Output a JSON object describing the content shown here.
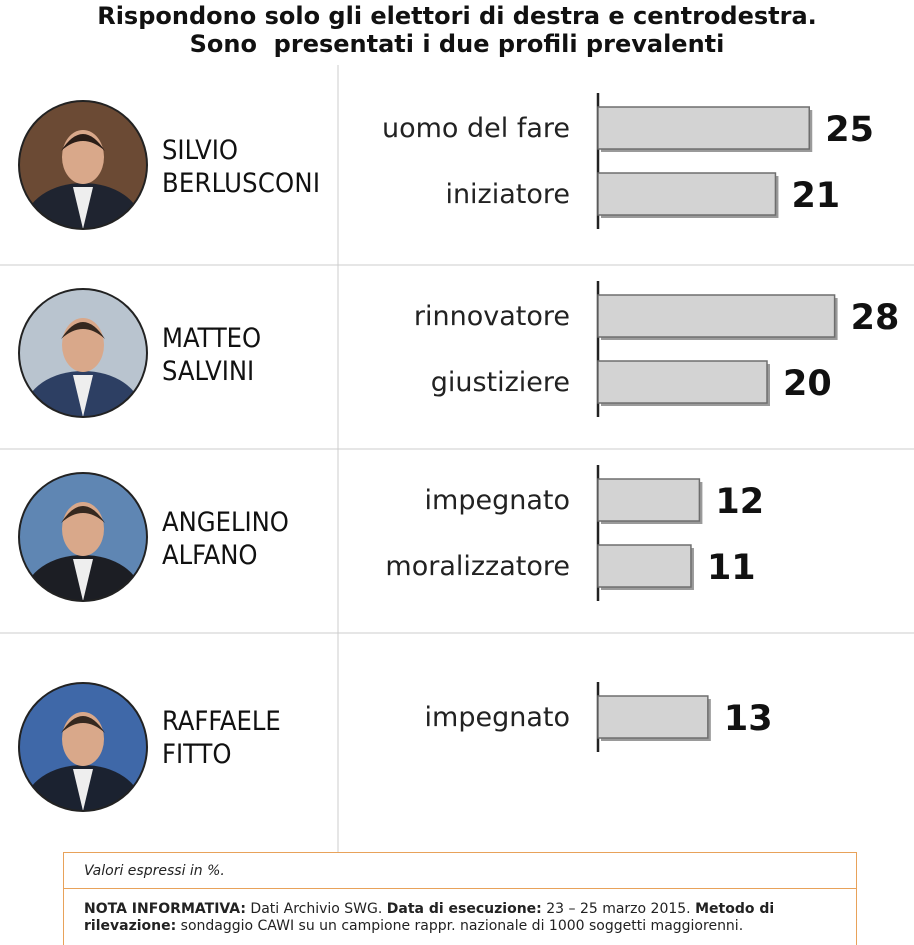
{
  "header": {
    "title_line1": "Rispondono solo gli elettori di destra e centrodestra.",
    "title_line2": "Sono  presentati i due profili prevalenti"
  },
  "chart_data": {
    "type": "bar",
    "unit": "%",
    "xlim": [
      0,
      30
    ],
    "groups": [
      {
        "name": [
          "SILVIO",
          "BERLUSCONI"
        ],
        "avatar": "berlusconi-photo",
        "bars": [
          {
            "label": "uomo del fare",
            "value": 25
          },
          {
            "label": "iniziatore",
            "value": 21
          }
        ]
      },
      {
        "name": [
          "MATTEO",
          "SALVINI"
        ],
        "avatar": "salvini-photo",
        "bars": [
          {
            "label": "rinnovatore",
            "value": 28
          },
          {
            "label": "giustiziere",
            "value": 20
          }
        ]
      },
      {
        "name": [
          "ANGELINO",
          "ALFANO"
        ],
        "avatar": "alfano-photo",
        "bars": [
          {
            "label": "impegnato",
            "value": 12
          },
          {
            "label": "moralizzatore",
            "value": 11
          }
        ]
      },
      {
        "name": [
          "RAFFAELE",
          "FITTO"
        ],
        "avatar": "fitto-photo",
        "bars": [
          {
            "label": "impegnato",
            "value": 13
          }
        ]
      }
    ]
  },
  "footer": {
    "values_note": "Valori espressi in %.",
    "nota_label": "NOTA INFORMATIVA:",
    "nota_text": " Dati Archivio SWG. ",
    "data_label": "Data di esecuzione:",
    "data_text": " 23 – 25 marzo 2015. ",
    "metodo_label": "Metodo di rilevazione:",
    "metodo_text": " sondaggio CAWI su un campione rappr. nazionale di 1000 soggetti maggiorenni."
  },
  "colors": {
    "bar_fill": "#d3d3d3",
    "bar_stroke": "#6e6e6e",
    "divider": "#cccccc",
    "note_border": "#e8a25a"
  }
}
